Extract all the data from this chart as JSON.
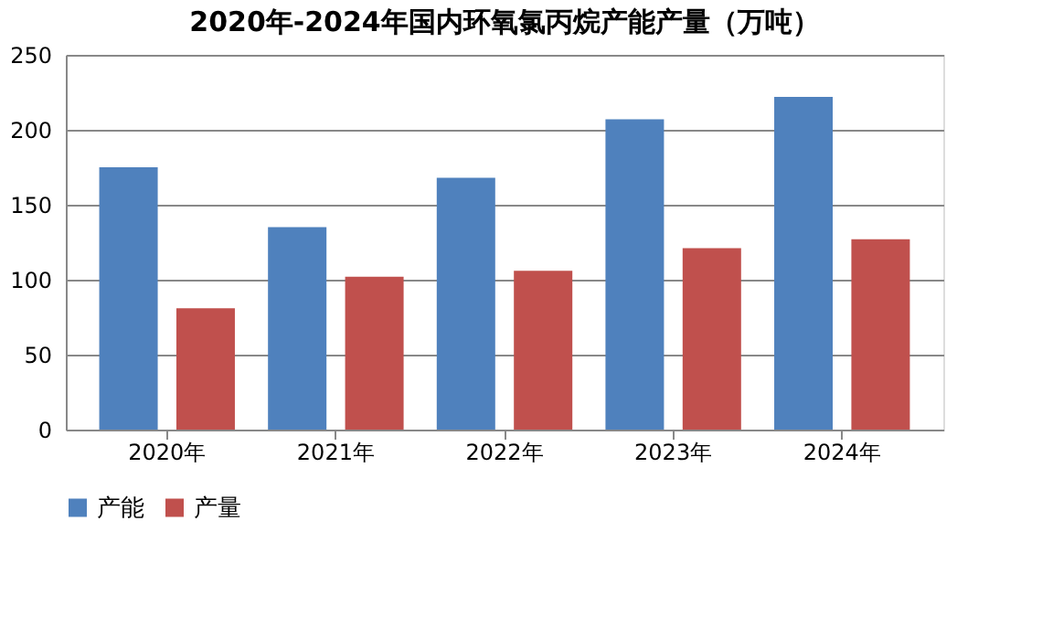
{
  "chart_data": {
    "type": "bar",
    "title": "2020年-2024年国内环氧氯丙烷产能产量（万吨）",
    "categories": [
      "2020年",
      "2021年",
      "2022年",
      "2023年",
      "2024年"
    ],
    "series": [
      {
        "name": "产能",
        "color": "#4f81bd",
        "values": [
          175,
          135,
          168,
          207,
          222
        ]
      },
      {
        "name": "产量",
        "color": "#c0504d",
        "values": [
          81,
          102,
          106,
          121,
          127
        ]
      }
    ],
    "ylim": [
      0,
      250
    ],
    "yticks": [
      0,
      50,
      100,
      150,
      200,
      250
    ],
    "grid": "y",
    "legend": "bottom"
  }
}
